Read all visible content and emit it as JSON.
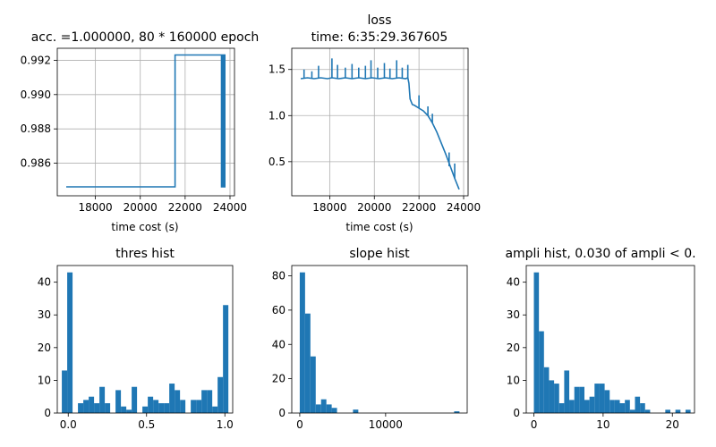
{
  "colors": {
    "series": "#1f77b4",
    "grid": "#b0b0b0",
    "axis": "#000000"
  },
  "chart_data": [
    {
      "id": "acc",
      "type": "line",
      "title": "acc. =1.000000, 80 * 160000 epoch",
      "xlabel": "time cost (s)",
      "ylabel": "",
      "xlim": [
        16300,
        24200
      ],
      "ylim": [
        0.9841,
        0.9927
      ],
      "xticks": [
        18000,
        20000,
        22000,
        24000
      ],
      "xtick_labels": [
        "18000",
        "20000",
        "22000",
        "24000"
      ],
      "yticks": [
        0.986,
        0.988,
        0.99,
        0.992
      ],
      "ytick_labels": [
        "0.986",
        "0.988",
        "0.990",
        "0.992"
      ],
      "grid": true,
      "series": [
        {
          "x": [
            16700,
            21550,
            21550,
            23620,
            23620,
            23650,
            23650,
            23680,
            23680,
            23710,
            23710,
            23740,
            23740,
            23770,
            23770,
            23800
          ],
          "y": [
            0.98462,
            0.98462,
            0.99231,
            0.99231,
            0.98462,
            0.98462,
            0.99231,
            0.99231,
            0.98462,
            0.98462,
            0.99231,
            0.99231,
            0.98462,
            0.98462,
            0.99231,
            0.99231
          ]
        }
      ]
    },
    {
      "id": "loss",
      "type": "line",
      "title": "loss",
      "subtitle": "time: 6:35:29.367605",
      "xlabel": "time cost (s)",
      "ylabel": "",
      "xlim": [
        16300,
        24200
      ],
      "ylim": [
        0.13,
        1.73
      ],
      "xticks": [
        18000,
        20000,
        22000,
        24000
      ],
      "xtick_labels": [
        "18000",
        "20000",
        "22000",
        "24000"
      ],
      "yticks": [
        0.5,
        1.0,
        1.5
      ],
      "ytick_labels": [
        "0.5",
        "1.0",
        "1.5"
      ],
      "grid": true,
      "series": [
        {
          "x": [
            16700,
            17000,
            17300,
            17600,
            17900,
            18100,
            18400,
            18700,
            19000,
            19300,
            19600,
            19900,
            20200,
            20500,
            20800,
            21100,
            21400,
            21500,
            21550,
            21600,
            21700,
            21800,
            22000,
            22200,
            22400,
            22600,
            22800,
            23000,
            23200,
            23400,
            23600,
            23800
          ],
          "y": [
            1.4,
            1.41,
            1.4,
            1.41,
            1.4,
            1.41,
            1.4,
            1.41,
            1.4,
            1.41,
            1.4,
            1.41,
            1.4,
            1.41,
            1.4,
            1.41,
            1.4,
            1.41,
            1.35,
            1.18,
            1.12,
            1.11,
            1.08,
            1.05,
            1.0,
            0.92,
            0.82,
            0.7,
            0.58,
            0.45,
            0.32,
            0.2
          ]
        }
      ],
      "spikes": [
        {
          "x": 16850,
          "y": 1.5
        },
        {
          "x": 17200,
          "y": 1.48
        },
        {
          "x": 17500,
          "y": 1.54
        },
        {
          "x": 18100,
          "y": 1.62
        },
        {
          "x": 18350,
          "y": 1.55
        },
        {
          "x": 18700,
          "y": 1.52
        },
        {
          "x": 19000,
          "y": 1.56
        },
        {
          "x": 19300,
          "y": 1.52
        },
        {
          "x": 19600,
          "y": 1.54
        },
        {
          "x": 19850,
          "y": 1.6
        },
        {
          "x": 20150,
          "y": 1.52
        },
        {
          "x": 20450,
          "y": 1.57
        },
        {
          "x": 20700,
          "y": 1.51
        },
        {
          "x": 21000,
          "y": 1.6
        },
        {
          "x": 21250,
          "y": 1.52
        },
        {
          "x": 21500,
          "y": 1.55
        },
        {
          "x": 22000,
          "y": 1.22
        },
        {
          "x": 22400,
          "y": 1.1
        },
        {
          "x": 22600,
          "y": 1.02
        },
        {
          "x": 23350,
          "y": 0.6
        },
        {
          "x": 23600,
          "y": 0.48
        }
      ]
    },
    {
      "id": "thres_hist",
      "type": "bar",
      "title": "thres hist",
      "xlabel": "",
      "ylabel": "",
      "xlim": [
        -0.07,
        1.05
      ],
      "ylim": [
        0,
        45.1
      ],
      "xticks": [
        0.0,
        0.5,
        1.0
      ],
      "xtick_labels": [
        "0.0",
        "0.5",
        "1.0"
      ],
      "yticks": [
        0,
        10,
        20,
        30,
        40
      ],
      "ytick_labels": [
        "0",
        "10",
        "20",
        "30",
        "40"
      ],
      "grid": false,
      "bin_start": -0.041,
      "bin_width": 0.0343,
      "values": [
        13,
        43,
        0,
        3,
        4,
        5,
        3,
        8,
        3,
        0,
        7,
        2,
        1,
        8,
        0,
        2,
        5,
        4,
        3,
        3,
        9,
        7,
        4,
        0,
        4,
        4,
        7,
        7,
        2,
        11,
        33
      ]
    },
    {
      "id": "slope_hist",
      "type": "bar",
      "title": "slope hist",
      "xlabel": "",
      "ylabel": "",
      "xlim": [
        -930,
        19500
      ],
      "ylim": [
        0,
        86
      ],
      "xticks": [
        0,
        10000
      ],
      "xtick_labels": [
        "0",
        "10000"
      ],
      "yticks": [
        0,
        20,
        40,
        60,
        80
      ],
      "ytick_labels": [
        "0",
        "20",
        "40",
        "60",
        "80"
      ],
      "grid": false,
      "bin_start": 0,
      "bin_width": 620,
      "values": [
        82,
        58,
        33,
        5,
        8,
        5,
        3,
        0,
        0,
        0,
        2,
        0,
        0,
        0,
        0,
        0,
        0,
        0,
        0,
        0,
        0,
        0,
        0,
        0,
        0,
        0,
        0,
        0,
        0,
        1
      ]
    },
    {
      "id": "ampli_hist",
      "type": "bar",
      "title": "ampli hist, 0.030 of ampli < 0.",
      "xlabel": "",
      "ylabel": "",
      "xlim": [
        -1.1,
        23.2
      ],
      "ylim": [
        0,
        45.1
      ],
      "xticks": [
        0,
        10,
        20
      ],
      "xtick_labels": [
        "0",
        "10",
        "20"
      ],
      "yticks": [
        0,
        10,
        20,
        30,
        40
      ],
      "ytick_labels": [
        "0",
        "10",
        "20",
        "30",
        "40"
      ],
      "grid": false,
      "bin_start": 0.0,
      "bin_width": 0.73,
      "values": [
        43,
        25,
        14,
        10,
        9,
        3,
        13,
        4,
        8,
        8,
        4,
        5,
        9,
        9,
        7,
        4,
        4,
        3,
        4,
        1,
        5,
        3,
        1,
        0,
        0,
        0,
        1,
        0,
        1,
        0,
        1
      ]
    }
  ]
}
